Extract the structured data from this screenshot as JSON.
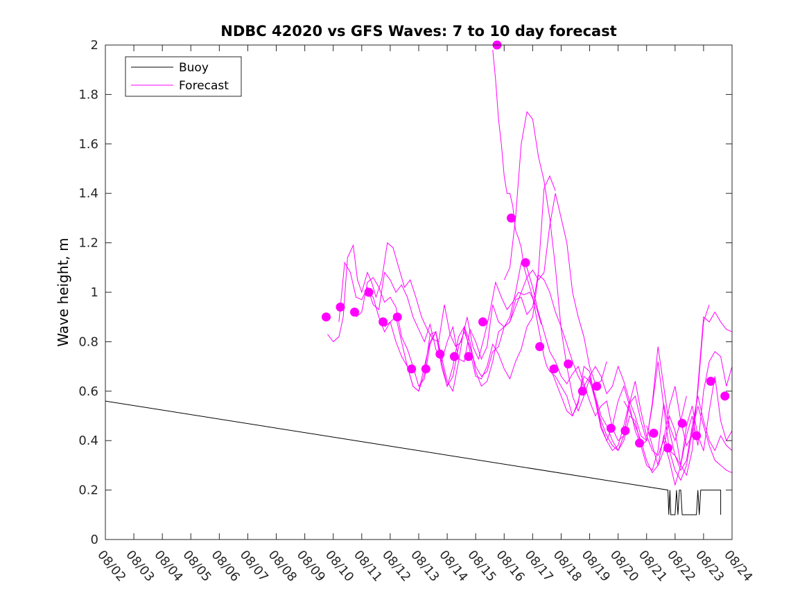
{
  "chart_data": {
    "type": "line",
    "title": "NDBC 42020 vs GFS Waves: 7 to 10 day forecast",
    "xlabel": "",
    "ylabel": "Wave height, m",
    "ylim": [
      0,
      2
    ],
    "yticks": [
      0,
      0.2,
      0.4,
      0.6,
      0.8,
      1,
      1.2,
      1.4,
      1.6,
      1.8,
      2
    ],
    "ytick_labels": [
      "0",
      "0.2",
      "0.4",
      "0.6",
      "0.8",
      "1",
      "1.2",
      "1.4",
      "1.6",
      "1.8",
      "2"
    ],
    "xlim_day": [
      0,
      22
    ],
    "xtick_labels": [
      "08/02",
      "08/03",
      "08/04",
      "08/05",
      "08/06",
      "08/07",
      "08/08",
      "08/09",
      "08/10",
      "08/11",
      "08/12",
      "08/13",
      "08/14",
      "08/15",
      "08/16",
      "08/17",
      "08/18",
      "08/19",
      "08/20",
      "08/21",
      "08/22",
      "08/23",
      "08/24"
    ],
    "legend": {
      "position": "top-left",
      "entries": [
        {
          "label": "Buoy",
          "color": "#000000"
        },
        {
          "label": "Forecast",
          "color": "#ff00ff"
        }
      ]
    },
    "colors": {
      "buoy": "#000000",
      "forecast": "#ff00ff",
      "axis": "#262626"
    },
    "buoy": {
      "x": [
        0,
        19.75,
        19.78,
        19.82,
        19.85,
        19.9,
        19.95,
        20.0,
        20.05,
        20.1,
        20.15,
        20.2,
        20.25,
        20.3,
        20.75,
        20.8,
        20.85,
        20.9,
        20.95,
        21.0,
        21.55,
        21.6,
        21.6
      ],
      "y": [
        0.56,
        0.2,
        0.1,
        0.2,
        0.1,
        0.1,
        0.1,
        0.1,
        0.2,
        0.1,
        0.2,
        0.2,
        0.1,
        0.1,
        0.1,
        0.2,
        0.1,
        0.2,
        0.2,
        0.2,
        0.2,
        0.2,
        0.1
      ]
    },
    "daily_points": {
      "x": [
        7.75,
        8.25,
        8.75,
        9.25,
        9.75,
        10.25,
        10.75,
        11.25,
        11.75,
        12.25,
        12.75,
        13.25,
        13.75,
        14.25,
        14.75,
        15.25,
        15.75,
        16.25,
        16.75,
        17.25,
        17.75,
        18.25,
        18.75,
        19.25,
        19.75,
        20.25,
        20.75,
        21.25,
        21.75
      ],
      "y": [
        0.9,
        0.94,
        0.92,
        1.0,
        0.88,
        0.9,
        0.69,
        0.69,
        0.75,
        0.74,
        0.74,
        0.88,
        2.0,
        1.3,
        1.12,
        0.78,
        0.69,
        0.71,
        0.6,
        0.62,
        0.45,
        0.44,
        0.39,
        0.43,
        0.37,
        0.47,
        0.42,
        0.64,
        0.58
      ]
    },
    "forecast_runs": [
      {
        "x": [
          7.8,
          8.0,
          8.2,
          8.35,
          8.5,
          8.7,
          8.85,
          9.0,
          9.2,
          9.35,
          9.5,
          9.7,
          9.9,
          10.1,
          10.3,
          10.5,
          10.7,
          10.9,
          11.1,
          11.3,
          11.5,
          11.7,
          11.9,
          12.1,
          12.3,
          12.5,
          12.7,
          12.9,
          13.1,
          13.3,
          13.5,
          13.7,
          13.9,
          14.1,
          14.3,
          14.5,
          14.7,
          14.9,
          15.1,
          15.3
        ],
        "y": [
          0.83,
          0.8,
          0.82,
          0.9,
          1.14,
          1.19,
          1.05,
          1.0,
          1.08,
          1.04,
          0.98,
          1.05,
          1.2,
          1.18,
          1.1,
          1.02,
          1.05,
          0.98,
          0.9,
          0.85,
          0.81,
          0.8,
          0.95,
          0.83,
          0.78,
          0.8,
          0.9,
          0.78,
          0.73,
          0.82,
          0.92,
          1.04,
          0.98,
          0.93,
          0.96,
          1.0,
          0.99,
          1.0,
          0.95,
          0.87
        ]
      },
      {
        "x": [
          8.2,
          8.4,
          8.6,
          8.8,
          9.0,
          9.2,
          9.4,
          9.6,
          9.8,
          10.0,
          10.2,
          10.4,
          10.6,
          10.8,
          11.0,
          11.2,
          11.4,
          11.6,
          11.8,
          12.0,
          12.2,
          12.4,
          12.6,
          12.8,
          13.0,
          13.2,
          13.4,
          13.6,
          13.8,
          14.0,
          14.2,
          14.4,
          14.6,
          14.8,
          15.0,
          15.2,
          15.4,
          15.6,
          15.8
        ],
        "y": [
          0.88,
          1.12,
          1.08,
          0.98,
          0.97,
          1.02,
          0.95,
          0.93,
          1.08,
          1.05,
          1.0,
          1.03,
          0.98,
          0.9,
          0.85,
          0.8,
          0.87,
          0.77,
          0.72,
          0.8,
          0.86,
          0.73,
          0.72,
          0.85,
          0.8,
          0.73,
          0.78,
          0.95,
          0.88,
          0.86,
          0.88,
          0.97,
          0.98,
          0.91,
          0.94,
          1.08,
          1.42,
          1.47,
          1.41
        ]
      },
      {
        "x": [
          8.8,
          9.0,
          9.2,
          9.4,
          9.6,
          9.8,
          10.0,
          10.2,
          10.4,
          10.6,
          10.8,
          11.0,
          11.2,
          11.4,
          11.6,
          11.8,
          12.0,
          12.2,
          12.4,
          12.6,
          12.8,
          13.0,
          13.2,
          13.4,
          13.6,
          13.8,
          14.0,
          14.2,
          14.4,
          14.6,
          14.8,
          15.0,
          15.2,
          15.4,
          15.6,
          15.8,
          16.0,
          16.2,
          16.4,
          16.6,
          16.8,
          17.0,
          17.2,
          17.4,
          17.6
        ],
        "y": [
          0.9,
          0.92,
          1.04,
          1.06,
          1.02,
          0.96,
          0.98,
          0.94,
          0.82,
          0.77,
          0.7,
          0.62,
          0.65,
          0.79,
          0.84,
          0.74,
          0.64,
          0.6,
          0.72,
          0.86,
          0.8,
          0.68,
          0.62,
          0.64,
          0.72,
          0.84,
          0.86,
          0.88,
          0.94,
          1.0,
          1.06,
          1.09,
          1.05,
          1.08,
          1.27,
          1.4,
          1.3,
          1.2,
          1.0,
          0.9,
          0.82,
          0.7,
          0.63,
          0.64,
          0.72
        ]
      },
      {
        "x": [
          9.2,
          9.4,
          9.6,
          9.8,
          10.0,
          10.2,
          10.4,
          10.6,
          10.8,
          11.0,
          11.2,
          11.4,
          11.6,
          11.8,
          12.0,
          12.2,
          12.4,
          12.6,
          12.8,
          13.0,
          13.2,
          13.4,
          13.6,
          13.8,
          14.0,
          14.2,
          14.4,
          14.6,
          14.8,
          15.0,
          15.2,
          15.4,
          15.6,
          15.8,
          16.0,
          16.2,
          16.4,
          16.6,
          16.8,
          17.0,
          17.2,
          17.4,
          17.6,
          17.8,
          18.0,
          18.2,
          18.4
        ],
        "y": [
          1.0,
          0.98,
          0.9,
          0.84,
          0.88,
          0.9,
          0.8,
          0.7,
          0.62,
          0.6,
          0.7,
          0.8,
          0.84,
          0.7,
          0.62,
          0.7,
          0.82,
          0.86,
          0.76,
          0.66,
          0.65,
          0.7,
          0.79,
          0.75,
          0.69,
          0.65,
          0.72,
          0.77,
          0.86,
          0.9,
          1.07,
          1.05,
          1.0,
          0.92,
          0.86,
          0.79,
          0.72,
          0.66,
          0.62,
          0.66,
          0.7,
          0.66,
          0.59,
          0.62,
          0.7,
          0.64,
          0.56
        ]
      },
      {
        "x": [
          9.8,
          10.0,
          10.2,
          10.4,
          10.6,
          10.8,
          11.0,
          11.2,
          11.4,
          11.6,
          11.8,
          12.0,
          12.2,
          12.4,
          12.6,
          12.8,
          13.0,
          13.2,
          13.4,
          13.6,
          13.8,
          14.0,
          14.2,
          14.4,
          14.6,
          14.8,
          15.0,
          15.2,
          15.4,
          15.6,
          15.8,
          16.0,
          16.2,
          16.4,
          16.6,
          16.8,
          17.0,
          17.2,
          17.4,
          17.6,
          17.8,
          18.0,
          18.2,
          18.4,
          18.6,
          18.8,
          19.0
        ],
        "y": [
          0.86,
          0.88,
          0.8,
          0.74,
          0.7,
          0.62,
          0.6,
          0.67,
          0.83,
          0.84,
          0.72,
          0.62,
          0.66,
          0.78,
          0.84,
          0.78,
          0.7,
          0.66,
          0.68,
          0.76,
          0.78,
          0.86,
          0.9,
          1.0,
          1.12,
          1.1,
          1.02,
          0.92,
          0.84,
          0.76,
          0.72,
          0.66,
          0.63,
          0.67,
          0.7,
          0.63,
          0.56,
          0.5,
          0.54,
          0.56,
          0.45,
          0.4,
          0.42,
          0.55,
          0.58,
          0.48,
          0.4
        ]
      },
      {
        "x": [
          13.6,
          13.7,
          13.8,
          13.9,
          14.0,
          14.1,
          14.2,
          14.3,
          14.4,
          14.5,
          14.6,
          14.7,
          14.8,
          14.9,
          15.0,
          15.1,
          15.2,
          15.3,
          15.4,
          15.5,
          15.6,
          15.8,
          16.0,
          16.2,
          16.4,
          16.6,
          16.8,
          17.0,
          17.2,
          17.4,
          17.6,
          17.8,
          18.0,
          18.2,
          18.4,
          18.6,
          18.8,
          19.0,
          19.2,
          19.4,
          19.6,
          19.8,
          20.0,
          20.2,
          20.4
        ],
        "y": [
          1.98,
          1.86,
          1.7,
          1.6,
          1.47,
          1.4,
          1.4,
          1.35,
          1.25,
          1.22,
          1.18,
          1.1,
          1.06,
          1.02,
          0.98,
          0.92,
          0.86,
          0.8,
          0.74,
          0.7,
          0.68,
          0.66,
          0.62,
          0.58,
          0.5,
          0.55,
          0.7,
          0.68,
          0.56,
          0.45,
          0.4,
          0.46,
          0.56,
          0.62,
          0.54,
          0.44,
          0.38,
          0.4,
          0.55,
          0.78,
          0.62,
          0.46,
          0.4,
          0.48,
          0.58
        ]
      },
      {
        "x": [
          14.0,
          14.2,
          14.4,
          14.6,
          14.8,
          15.0,
          15.2,
          15.4,
          15.6,
          15.8,
          16.0,
          16.2,
          16.4,
          16.6,
          16.8,
          17.0,
          17.2,
          17.4,
          17.6,
          17.8,
          18.0,
          18.2,
          18.4,
          18.6,
          18.8,
          19.0,
          19.2,
          19.4,
          19.6,
          19.8,
          20.0,
          20.2,
          20.4,
          20.6,
          20.8,
          21.0,
          21.2
        ],
        "y": [
          1.05,
          1.1,
          1.3,
          1.6,
          1.73,
          1.7,
          1.55,
          1.45,
          1.3,
          1.1,
          0.85,
          0.7,
          0.58,
          0.52,
          0.58,
          0.65,
          0.56,
          0.48,
          0.42,
          0.38,
          0.36,
          0.42,
          0.55,
          0.64,
          0.52,
          0.42,
          0.36,
          0.34,
          0.4,
          0.54,
          0.62,
          0.48,
          0.38,
          0.42,
          0.6,
          0.88,
          0.95
        ]
      },
      {
        "x": [
          15.6,
          15.8,
          16.0,
          16.2,
          16.4,
          16.6,
          16.8,
          17.0,
          17.2,
          17.4,
          17.6,
          17.8,
          18.0,
          18.2,
          18.4,
          18.6,
          18.8,
          19.0,
          19.2,
          19.4,
          19.6,
          19.8,
          20.0,
          20.2,
          20.4,
          20.6,
          20.8,
          21.0,
          21.2,
          21.4,
          21.6,
          21.8,
          22.0
        ],
        "y": [
          0.7,
          0.64,
          0.58,
          0.52,
          0.5,
          0.56,
          0.66,
          0.64,
          0.58,
          0.46,
          0.4,
          0.36,
          0.38,
          0.46,
          0.56,
          0.5,
          0.42,
          0.4,
          0.54,
          0.72,
          0.54,
          0.36,
          0.34,
          0.3,
          0.46,
          0.54,
          0.42,
          0.36,
          0.52,
          0.66,
          0.48,
          0.4,
          0.44
        ]
      },
      {
        "x": [
          17.0,
          17.2,
          17.4,
          17.6,
          17.8,
          18.0,
          18.2,
          18.4,
          18.6,
          18.8,
          19.0,
          19.2,
          19.4,
          19.6,
          19.8,
          20.0,
          20.2,
          20.4,
          20.6,
          20.8,
          21.0,
          21.2,
          21.4,
          21.6,
          21.8,
          22.0
        ],
        "y": [
          0.66,
          0.58,
          0.5,
          0.46,
          0.4,
          0.36,
          0.4,
          0.5,
          0.48,
          0.38,
          0.3,
          0.28,
          0.36,
          0.55,
          0.44,
          0.34,
          0.28,
          0.32,
          0.46,
          0.58,
          0.48,
          0.4,
          0.36,
          0.42,
          0.38,
          0.36
        ]
      },
      {
        "x": [
          18.2,
          18.4,
          18.6,
          18.8,
          19.0,
          19.2,
          19.4,
          19.6,
          19.8,
          20.0,
          20.2,
          20.4,
          20.6,
          20.8,
          21.0,
          21.2,
          21.4,
          21.6,
          21.8,
          22.0
        ],
        "y": [
          0.56,
          0.52,
          0.46,
          0.4,
          0.32,
          0.27,
          0.3,
          0.42,
          0.36,
          0.28,
          0.24,
          0.3,
          0.44,
          0.54,
          0.46,
          0.38,
          0.32,
          0.3,
          0.28,
          0.27
        ]
      },
      {
        "x": [
          19.0,
          19.2,
          19.4,
          19.6,
          19.8,
          20.0,
          20.2,
          20.4,
          20.6,
          20.8,
          21.0,
          21.2,
          21.4,
          21.6,
          21.8,
          22.0
        ],
        "y": [
          0.46,
          0.38,
          0.3,
          0.36,
          0.5,
          0.44,
          0.3,
          0.26,
          0.36,
          0.62,
          0.9,
          0.88,
          0.92,
          0.88,
          0.85,
          0.84
        ]
      },
      {
        "x": [
          19.6,
          19.8,
          20.0,
          20.2,
          20.4,
          20.6,
          20.8,
          21.0,
          21.2,
          21.4,
          21.6,
          21.8,
          22.0
        ],
        "y": [
          0.4,
          0.32,
          0.22,
          0.3,
          0.42,
          0.5,
          0.38,
          0.6,
          0.72,
          0.76,
          0.74,
          0.62,
          0.7
        ]
      }
    ]
  }
}
